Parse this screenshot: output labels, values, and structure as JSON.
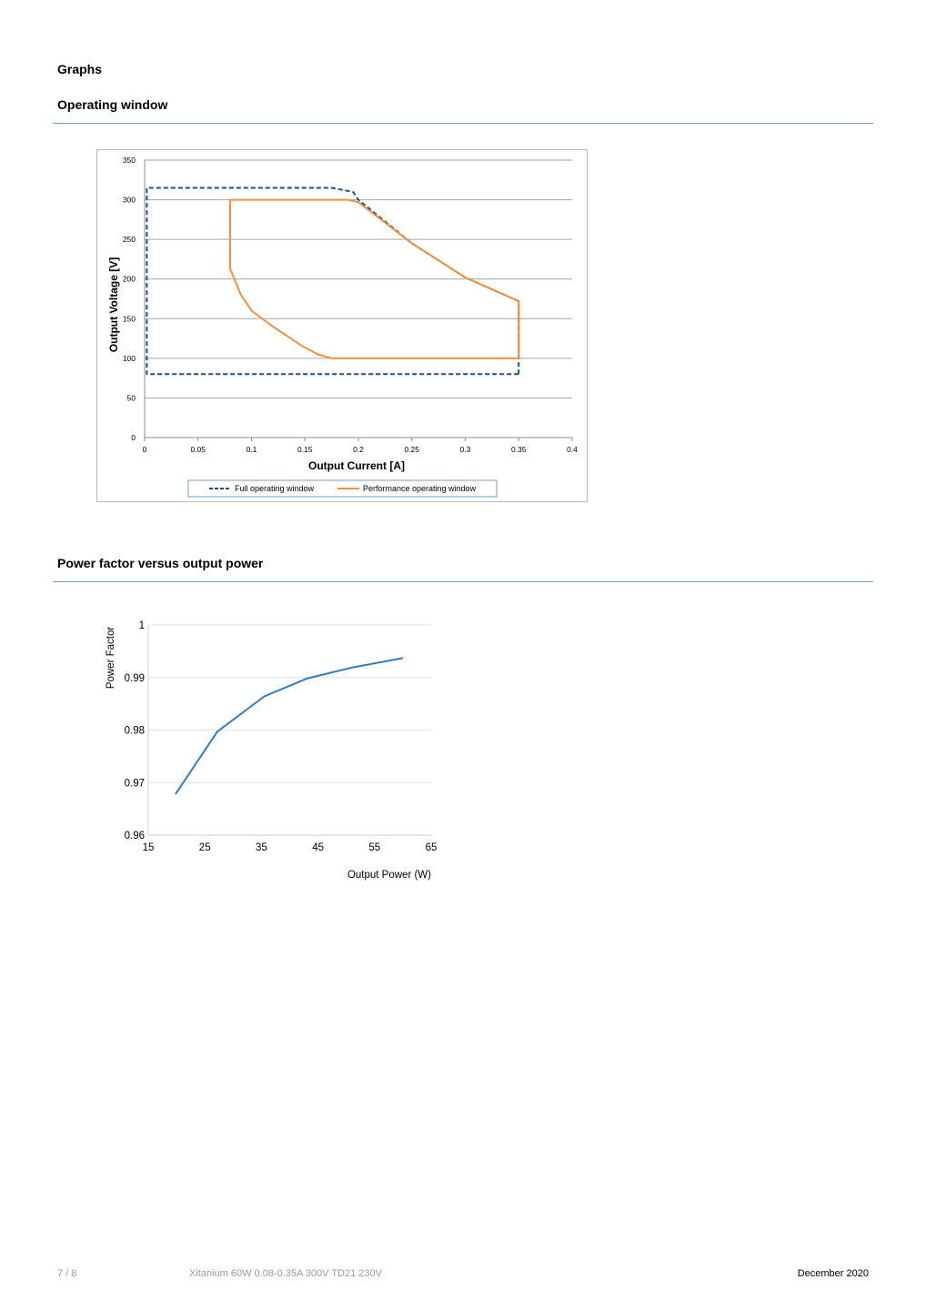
{
  "page": {
    "heading": "Graphs",
    "section1_title": "Operating window",
    "section2_title": "Power factor versus output power"
  },
  "footer": {
    "page_number": "7 / 8",
    "product": "Xitanium 60W 0.08-0.35A 300V TD21 230V",
    "date": "December 2020"
  },
  "chart_data": [
    {
      "type": "line",
      "xlabel": "Output Current [A]",
      "ylabel": "Output Voltage [V]",
      "xlim": [
        0,
        0.4
      ],
      "ylim": [
        0,
        350
      ],
      "x_ticks": [
        "0",
        "0.05",
        "0.1",
        "0.15",
        "0.2",
        "0.25",
        "0.3",
        "0.35",
        "0.4"
      ],
      "y_ticks": [
        "0",
        "50",
        "100",
        "150",
        "200",
        "250",
        "300",
        "350"
      ],
      "grid": "horizontal",
      "legend": "bottom",
      "series": [
        {
          "name": "Full operating window",
          "color": "#1f4e8c",
          "dashed": true,
          "x": [
            0.35,
            0.002,
            0.002,
            0.175,
            0.195,
            0.2,
            0.25,
            0.3,
            0.35,
            0.35
          ],
          "y": [
            80,
            80,
            315,
            315,
            310,
            300,
            245,
            202,
            172,
            80
          ]
        },
        {
          "name": "Performance operating window",
          "color": "#f0923c",
          "dashed": false,
          "x": [
            0.08,
            0.08,
            0.19,
            0.2,
            0.25,
            0.3,
            0.35,
            0.35,
            0.175,
            0.162,
            0.148,
            0.12,
            0.1,
            0.09,
            0.08
          ],
          "y": [
            213,
            300,
            300,
            297,
            245,
            202,
            172,
            100,
            100,
            105,
            115,
            140,
            160,
            180,
            213
          ]
        }
      ]
    },
    {
      "type": "line",
      "xlabel": "Output Power (W)",
      "ylabel": "Power Factor",
      "xlim": [
        15,
        65
      ],
      "ylim": [
        0.96,
        1
      ],
      "x_ticks": [
        "15",
        "25",
        "35",
        "45",
        "55",
        "65"
      ],
      "y_ticks": [
        "0.96",
        "0.97",
        "0.98",
        "0.99",
        "1"
      ],
      "grid": "horizontal",
      "series": [
        {
          "color": "#2e7dbe",
          "x": [
            19.8,
            27.2,
            35.5,
            43,
            51,
            60
          ],
          "y": [
            0.9678,
            0.9797,
            0.9864,
            0.9898,
            0.9919,
            0.9937
          ]
        }
      ]
    }
  ]
}
